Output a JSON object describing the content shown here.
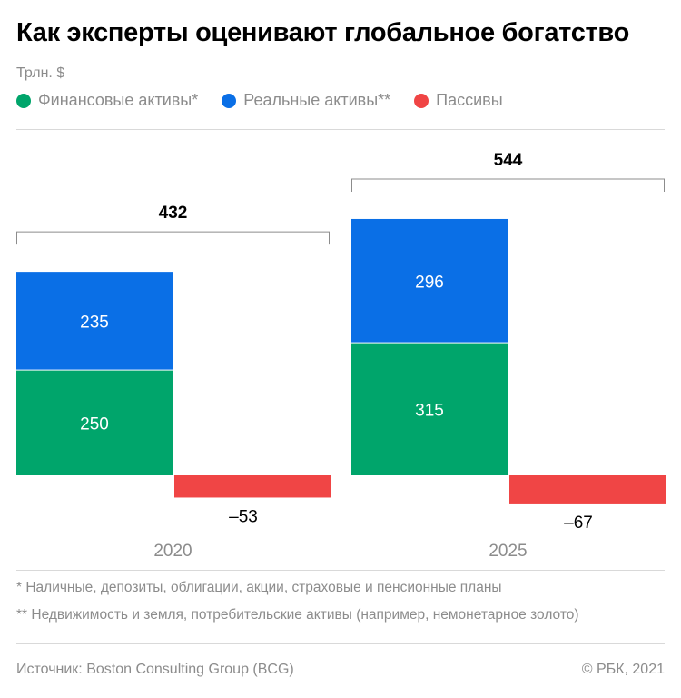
{
  "header": {
    "title": "Как эксперты оценивают глобальное богатство",
    "unit": "Трлн. $"
  },
  "legend": [
    {
      "label": "Финансовые активы*",
      "color": "#00a56b"
    },
    {
      "label": "Реальные активы**",
      "color": "#0a6fe6"
    },
    {
      "label": "Пассивы",
      "color": "#f04545"
    }
  ],
  "chart_data": {
    "type": "bar",
    "stacked": true,
    "categories": [
      "2020",
      "2025"
    ],
    "series": [
      {
        "name": "Финансовые активы*",
        "values": [
          250,
          315
        ],
        "color": "#00a56b"
      },
      {
        "name": "Реальные активы**",
        "values": [
          235,
          296
        ],
        "color": "#0a6fe6"
      },
      {
        "name": "Пассивы",
        "values": [
          -53,
          -67
        ],
        "color": "#f04545"
      }
    ],
    "value_labels": {
      "financial": [
        "250",
        "315"
      ],
      "real": [
        "235",
        "296"
      ],
      "liabilities": [
        "–53",
        "–67"
      ]
    },
    "totals": [
      "432",
      "544"
    ],
    "legend_position": "top-left",
    "grid": false
  },
  "footnotes": [
    "* Наличные, депозиты, облигации, акции, страховые и пенсионные планы",
    "** Недвижимость и земля, потребительские активы (например, немонетарное золото)"
  ],
  "footer": {
    "source": "Источник: Boston Consulting Group (BCG)",
    "copyright": "© РБК, 2021"
  }
}
